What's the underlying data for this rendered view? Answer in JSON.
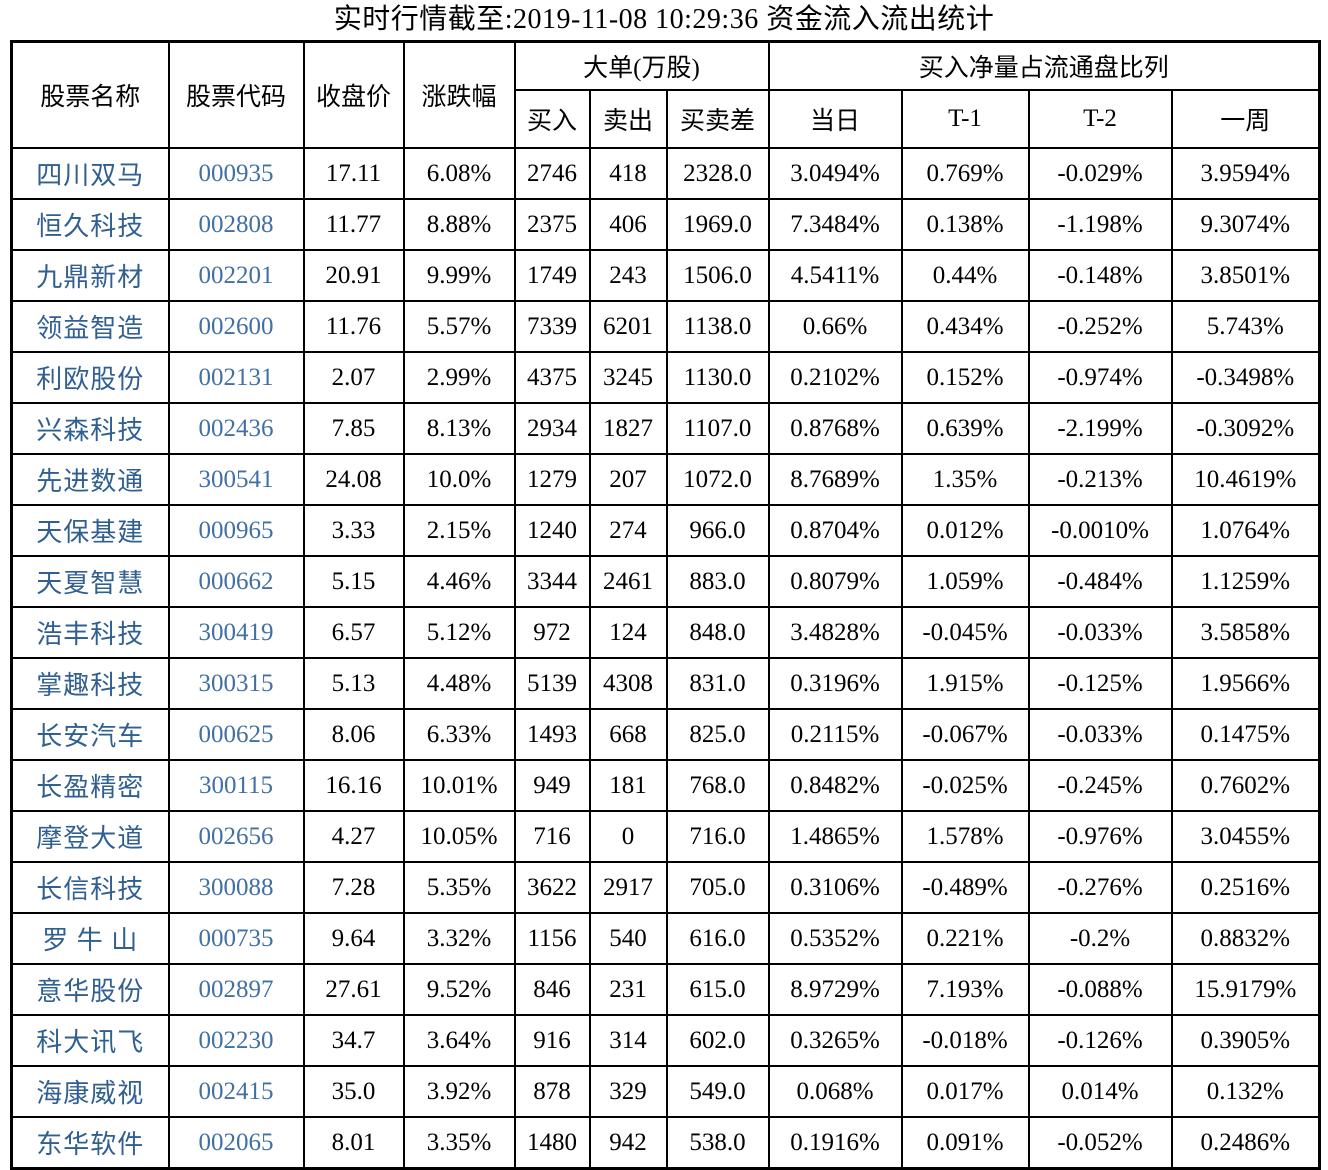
{
  "title": "实时行情截至:2019-11-08 10:29:36 资金流入流出统计",
  "colors": {
    "stock_name_blue": "#305f91",
    "stock_code_blue": "#4170a5",
    "border_black": "#000000",
    "background": "#ffffff"
  },
  "table": {
    "headers": {
      "stock_name": "股票名称",
      "stock_code": "股票代码",
      "close_price": "收盘价",
      "change_pct": "涨跌幅",
      "large_orders_group": "大单(万股)",
      "buy": "买入",
      "sell": "卖出",
      "buy_sell_diff": "买卖差",
      "net_buy_ratio_group": "买入净量占流通盘比列",
      "today": "当日",
      "t_minus_1": "T-1",
      "t_minus_2": "T-2",
      "week": "一周"
    },
    "rows": [
      [
        "四川双马",
        "000935",
        "17.11",
        "6.08%",
        "2746",
        "418",
        "2328.0",
        "3.0494%",
        "0.769%",
        "-0.029%",
        "3.9594%"
      ],
      [
        "恒久科技",
        "002808",
        "11.77",
        "8.88%",
        "2375",
        "406",
        "1969.0",
        "7.3484%",
        "0.138%",
        "-1.198%",
        "9.3074%"
      ],
      [
        "九鼎新材",
        "002201",
        "20.91",
        "9.99%",
        "1749",
        "243",
        "1506.0",
        "4.5411%",
        "0.44%",
        "-0.148%",
        "3.8501%"
      ],
      [
        "领益智造",
        "002600",
        "11.76",
        "5.57%",
        "7339",
        "6201",
        "1138.0",
        "0.66%",
        "0.434%",
        "-0.252%",
        "5.743%"
      ],
      [
        "利欧股份",
        "002131",
        "2.07",
        "2.99%",
        "4375",
        "3245",
        "1130.0",
        "0.2102%",
        "0.152%",
        "-0.974%",
        "-0.3498%"
      ],
      [
        "兴森科技",
        "002436",
        "7.85",
        "8.13%",
        "2934",
        "1827",
        "1107.0",
        "0.8768%",
        "0.639%",
        "-2.199%",
        "-0.3092%"
      ],
      [
        "先进数通",
        "300541",
        "24.08",
        "10.0%",
        "1279",
        "207",
        "1072.0",
        "8.7689%",
        "1.35%",
        "-0.213%",
        "10.4619%"
      ],
      [
        "天保基建",
        "000965",
        "3.33",
        "2.15%",
        "1240",
        "274",
        "966.0",
        "0.8704%",
        "0.012%",
        "-0.0010%",
        "1.0764%"
      ],
      [
        "天夏智慧",
        "000662",
        "5.15",
        "4.46%",
        "3344",
        "2461",
        "883.0",
        "0.8079%",
        "1.059%",
        "-0.484%",
        "1.1259%"
      ],
      [
        "浩丰科技",
        "300419",
        "6.57",
        "5.12%",
        "972",
        "124",
        "848.0",
        "3.4828%",
        "-0.045%",
        "-0.033%",
        "3.5858%"
      ],
      [
        "掌趣科技",
        "300315",
        "5.13",
        "4.48%",
        "5139",
        "4308",
        "831.0",
        "0.3196%",
        "1.915%",
        "-0.125%",
        "1.9566%"
      ],
      [
        "长安汽车",
        "000625",
        "8.06",
        "6.33%",
        "1493",
        "668",
        "825.0",
        "0.2115%",
        "-0.067%",
        "-0.033%",
        "0.1475%"
      ],
      [
        "长盈精密",
        "300115",
        "16.16",
        "10.01%",
        "949",
        "181",
        "768.0",
        "0.8482%",
        "-0.025%",
        "-0.245%",
        "0.7602%"
      ],
      [
        "摩登大道",
        "002656",
        "4.27",
        "10.05%",
        "716",
        "0",
        "716.0",
        "1.4865%",
        "1.578%",
        "-0.976%",
        "3.0455%"
      ],
      [
        "长信科技",
        "300088",
        "7.28",
        "5.35%",
        "3622",
        "2917",
        "705.0",
        "0.3106%",
        "-0.489%",
        "-0.276%",
        "0.2516%"
      ],
      [
        "罗 牛 山",
        "000735",
        "9.64",
        "3.32%",
        "1156",
        "540",
        "616.0",
        "0.5352%",
        "0.221%",
        "-0.2%",
        "0.8832%"
      ],
      [
        "意华股份",
        "002897",
        "27.61",
        "9.52%",
        "846",
        "231",
        "615.0",
        "8.9729%",
        "7.193%",
        "-0.088%",
        "15.9179%"
      ],
      [
        "科大讯飞",
        "002230",
        "34.7",
        "3.64%",
        "916",
        "314",
        "602.0",
        "0.3265%",
        "-0.018%",
        "-0.126%",
        "0.3905%"
      ],
      [
        "海康威视",
        "002415",
        "35.0",
        "3.92%",
        "878",
        "329",
        "549.0",
        "0.068%",
        "0.017%",
        "0.014%",
        "0.132%"
      ],
      [
        "东华软件",
        "002065",
        "8.01",
        "3.35%",
        "1480",
        "942",
        "538.0",
        "0.1916%",
        "0.091%",
        "-0.052%",
        "0.2486%"
      ]
    ]
  }
}
